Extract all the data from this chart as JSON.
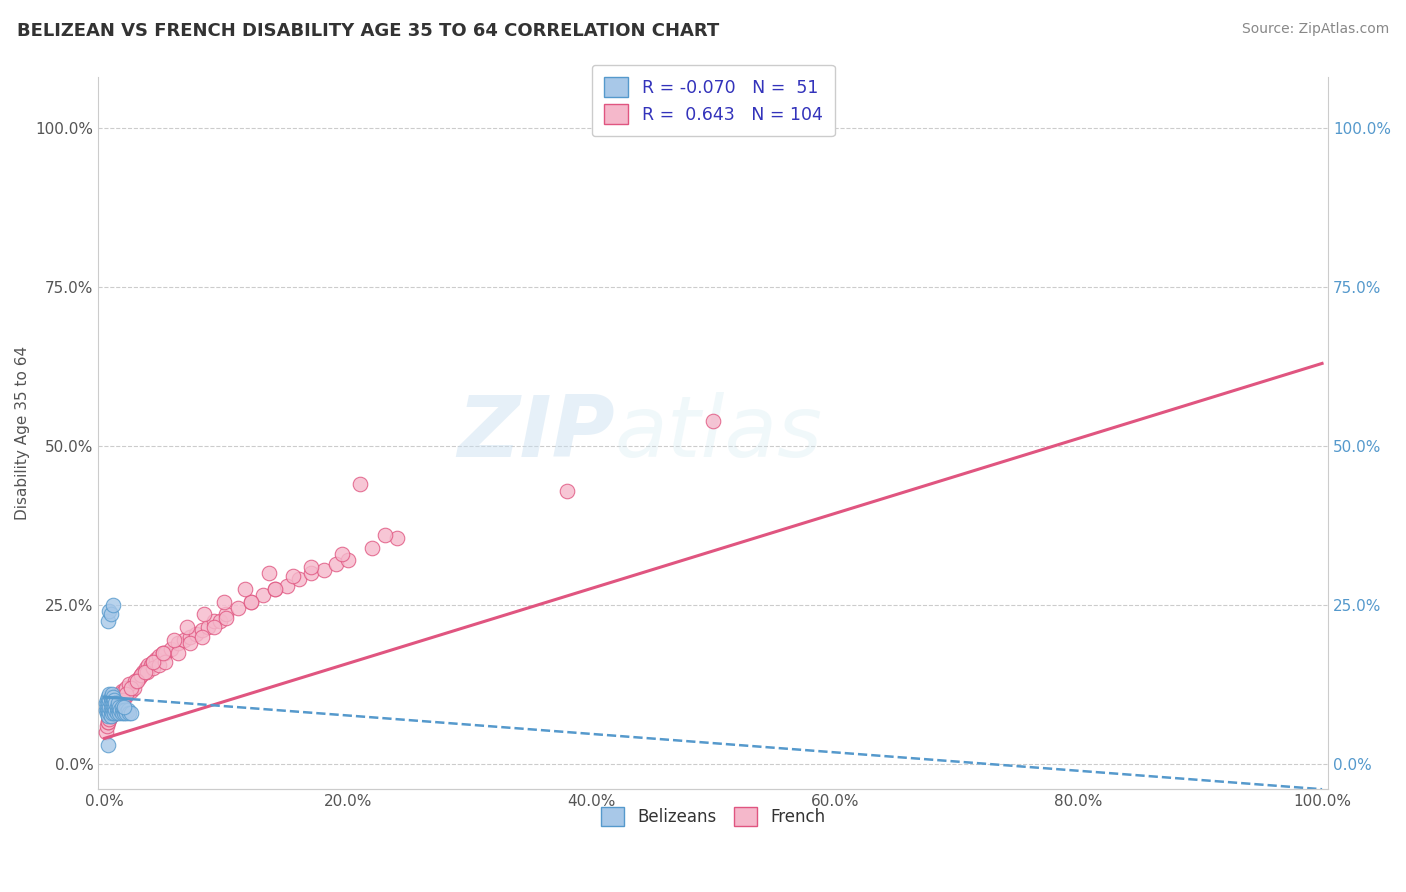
{
  "title": "BELIZEAN VS FRENCH DISABILITY AGE 35 TO 64 CORRELATION CHART",
  "source_text": "Source: ZipAtlas.com",
  "xlabel": "",
  "ylabel": "Disability Age 35 to 64",
  "xlim": [
    -0.005,
    1.005
  ],
  "ylim": [
    -0.04,
    1.08
  ],
  "x_tick_labels": [
    "0.0%",
    "20.0%",
    "40.0%",
    "60.0%",
    "80.0%",
    "100.0%"
  ],
  "x_tick_values": [
    0.0,
    0.2,
    0.4,
    0.6,
    0.8,
    1.0
  ],
  "y_tick_labels": [
    "0.0%",
    "25.0%",
    "50.0%",
    "75.0%",
    "100.0%"
  ],
  "y_tick_values": [
    0.0,
    0.25,
    0.5,
    0.75,
    1.0
  ],
  "belizean_color": "#a8c8e8",
  "belizean_edge_color": "#5599cc",
  "french_color": "#f5b8cb",
  "french_edge_color": "#e05580",
  "belizean_R": -0.07,
  "belizean_N": 51,
  "french_R": 0.643,
  "french_N": 104,
  "legend_label_belizean": "Belizeans",
  "legend_label_french": "French",
  "watermark_zip": "ZIP",
  "watermark_atlas": "atlas",
  "grid_color": "#cccccc",
  "background_color": "#ffffff",
  "belizean_trend_x0": 0.0,
  "belizean_trend_y0": 0.105,
  "belizean_trend_x1": 1.0,
  "belizean_trend_y1": -0.04,
  "french_trend_x0": 0.0,
  "french_trend_y0": 0.04,
  "french_trend_x1": 1.0,
  "french_trend_y1": 0.63,
  "belizean_x": [
    0.001,
    0.001,
    0.002,
    0.002,
    0.002,
    0.003,
    0.003,
    0.003,
    0.003,
    0.004,
    0.004,
    0.004,
    0.004,
    0.005,
    0.005,
    0.005,
    0.005,
    0.006,
    0.006,
    0.006,
    0.006,
    0.007,
    0.007,
    0.007,
    0.008,
    0.008,
    0.008,
    0.009,
    0.009,
    0.01,
    0.01,
    0.011,
    0.011,
    0.012,
    0.012,
    0.013,
    0.014,
    0.014,
    0.015,
    0.016,
    0.017,
    0.018,
    0.019,
    0.02,
    0.022,
    0.003,
    0.004,
    0.005,
    0.007,
    0.016,
    0.003
  ],
  "belizean_y": [
    0.085,
    0.095,
    0.08,
    0.09,
    0.1,
    0.075,
    0.085,
    0.095,
    0.105,
    0.08,
    0.09,
    0.1,
    0.11,
    0.075,
    0.085,
    0.095,
    0.105,
    0.08,
    0.09,
    0.1,
    0.11,
    0.085,
    0.095,
    0.105,
    0.08,
    0.09,
    0.1,
    0.085,
    0.095,
    0.08,
    0.09,
    0.085,
    0.095,
    0.08,
    0.09,
    0.085,
    0.08,
    0.09,
    0.085,
    0.08,
    0.085,
    0.08,
    0.085,
    0.08,
    0.08,
    0.225,
    0.24,
    0.235,
    0.25,
    0.09,
    0.03
  ],
  "french_x": [
    0.001,
    0.002,
    0.003,
    0.004,
    0.005,
    0.006,
    0.007,
    0.008,
    0.009,
    0.01,
    0.011,
    0.012,
    0.013,
    0.014,
    0.015,
    0.016,
    0.017,
    0.018,
    0.019,
    0.02,
    0.022,
    0.024,
    0.026,
    0.028,
    0.03,
    0.032,
    0.034,
    0.036,
    0.038,
    0.04,
    0.042,
    0.045,
    0.048,
    0.05,
    0.055,
    0.06,
    0.065,
    0.07,
    0.075,
    0.08,
    0.085,
    0.09,
    0.095,
    0.1,
    0.11,
    0.12,
    0.13,
    0.14,
    0.15,
    0.16,
    0.17,
    0.18,
    0.19,
    0.2,
    0.22,
    0.24,
    0.006,
    0.008,
    0.01,
    0.012,
    0.014,
    0.016,
    0.018,
    0.02,
    0.025,
    0.03,
    0.035,
    0.04,
    0.045,
    0.05,
    0.06,
    0.07,
    0.08,
    0.09,
    0.1,
    0.12,
    0.14,
    0.003,
    0.004,
    0.005,
    0.007,
    0.009,
    0.011,
    0.013,
    0.015,
    0.018,
    0.022,
    0.027,
    0.033,
    0.04,
    0.048,
    0.057,
    0.068,
    0.082,
    0.098,
    0.115,
    0.135,
    0.38,
    0.5,
    0.17,
    0.155,
    0.195,
    0.21,
    0.23
  ],
  "french_y": [
    0.05,
    0.06,
    0.065,
    0.07,
    0.075,
    0.08,
    0.085,
    0.09,
    0.085,
    0.09,
    0.095,
    0.1,
    0.095,
    0.1,
    0.105,
    0.11,
    0.105,
    0.11,
    0.115,
    0.12,
    0.115,
    0.12,
    0.13,
    0.135,
    0.14,
    0.145,
    0.15,
    0.155,
    0.155,
    0.16,
    0.165,
    0.17,
    0.175,
    0.175,
    0.18,
    0.19,
    0.195,
    0.2,
    0.205,
    0.21,
    0.215,
    0.225,
    0.225,
    0.235,
    0.245,
    0.255,
    0.265,
    0.275,
    0.28,
    0.29,
    0.3,
    0.305,
    0.315,
    0.32,
    0.34,
    0.355,
    0.095,
    0.1,
    0.105,
    0.11,
    0.115,
    0.115,
    0.12,
    0.125,
    0.13,
    0.14,
    0.145,
    0.15,
    0.155,
    0.16,
    0.175,
    0.19,
    0.2,
    0.215,
    0.23,
    0.255,
    0.275,
    0.065,
    0.07,
    0.075,
    0.08,
    0.085,
    0.09,
    0.095,
    0.1,
    0.11,
    0.12,
    0.13,
    0.145,
    0.16,
    0.175,
    0.195,
    0.215,
    0.235,
    0.255,
    0.275,
    0.3,
    0.43,
    0.54,
    0.31,
    0.295,
    0.33,
    0.44,
    0.36
  ]
}
